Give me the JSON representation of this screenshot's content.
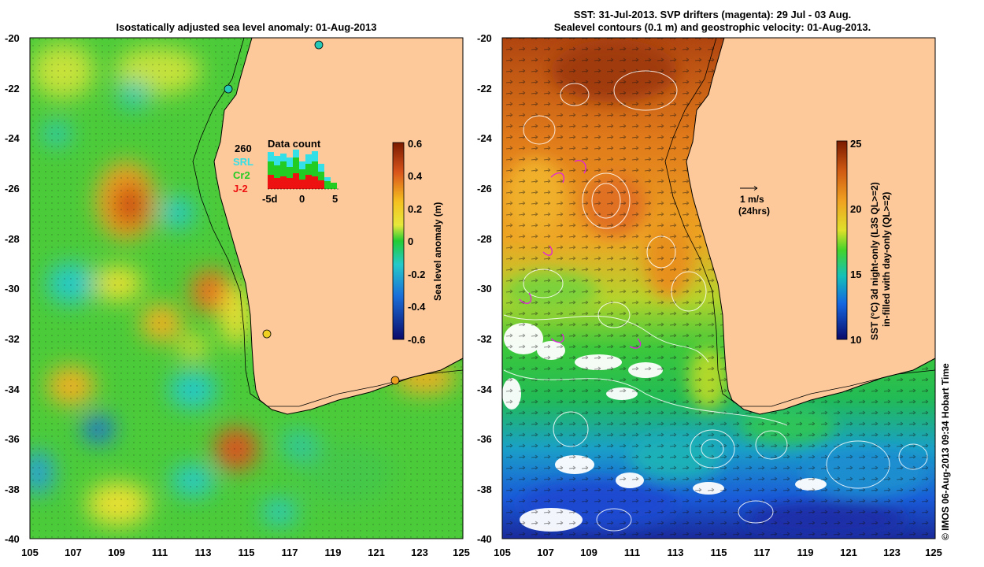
{
  "left_map": {
    "title": "Isostatically adjusted sea level anomaly: 01-Aug-2013",
    "colorbar": {
      "label": "Sea level anomaly (m)",
      "ticks": [
        "0.6",
        "0.4",
        "0.2",
        "0",
        "-0.2",
        "-0.4",
        "-0.6"
      ]
    },
    "inset": {
      "count": "260",
      "title": "Data count",
      "legend": [
        {
          "label": "SRL",
          "color": "#33e0e8"
        },
        {
          "label": "Cr2",
          "color": "#22cc22"
        },
        {
          "label": "J-2",
          "color": "#ee1111"
        }
      ],
      "xticks": [
        "-5d",
        "0",
        "5"
      ]
    }
  },
  "right_map": {
    "title_line1": "SST: 31-Jul-2013. SVP drifters (magenta): 29 Jul - 03 Aug.",
    "title_line2": "Sealevel contours (0.1 m) and geostrophic velocity: 01-Aug-2013.",
    "scale_label": "1 m/s",
    "scale_sub": "(24hrs)",
    "colorbar": {
      "label1": "SST (°C)  3d night-only (L3S QL>=2)",
      "label2": "in-filled with day-only (QL>=2)",
      "ticks": [
        "25",
        "20",
        "15",
        "10"
      ]
    }
  },
  "axes": {
    "lat_ticks": [
      "-20",
      "-22",
      "-24",
      "-26",
      "-28",
      "-30",
      "-32",
      "-34",
      "-36",
      "-38",
      "-40"
    ],
    "lon_ticks": [
      "105",
      "107",
      "109",
      "111",
      "113",
      "115",
      "117",
      "119",
      "121",
      "123",
      "125"
    ]
  },
  "credit": "© IMOS 06-Aug-2013 09:34 Hobart Time",
  "colors": {
    "land": "#fdc99b",
    "coast": "#000000"
  }
}
